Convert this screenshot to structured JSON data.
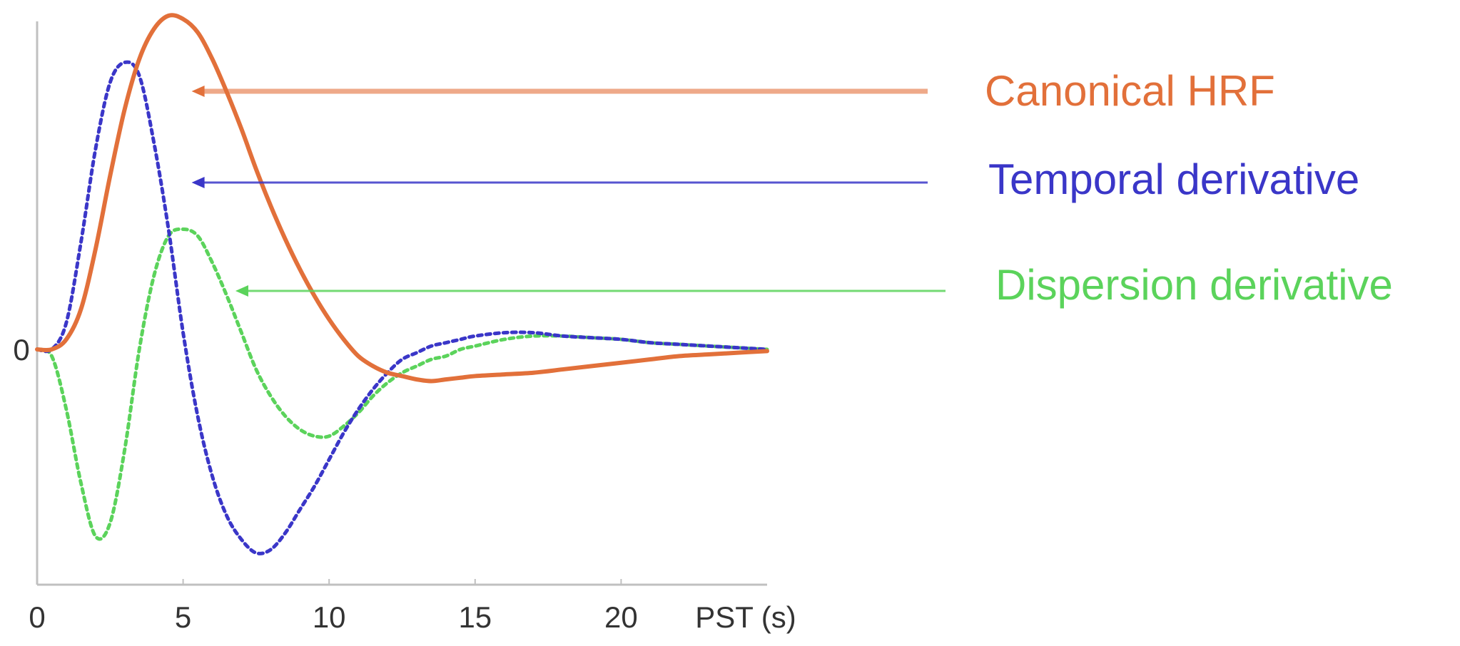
{
  "chart_data": {
    "type": "line",
    "xlabel": "PST (s)",
    "ylabel": "",
    "xlim": [
      0,
      25
    ],
    "ylim": [
      -0.62,
      1.0
    ],
    "x_ticks": [
      0,
      5,
      10,
      15,
      20
    ],
    "x_tick_labels": [
      "0",
      "5",
      "10",
      "15",
      "20"
    ],
    "y_ticks": [
      0
    ],
    "y_tick_labels": [
      "0"
    ],
    "grid": false,
    "legend_placement": "right, annotated with arrows pointing to each curve",
    "series": [
      {
        "name": "Canonical HRF",
        "color": "#e2703a",
        "style": "solid",
        "arrow_target": [
          5,
          0.78
        ],
        "x": [
          0,
          0.5,
          1,
          1.5,
          2,
          2.5,
          3,
          3.5,
          4,
          4.5,
          5,
          5.5,
          6,
          6.5,
          7,
          7.5,
          8,
          8.5,
          9,
          9.5,
          10,
          10.5,
          11,
          11.5,
          12,
          12.5,
          13,
          13.5,
          14,
          14.5,
          15,
          16,
          17,
          18,
          19,
          20,
          21,
          22,
          23,
          24,
          25
        ],
        "y": [
          0,
          0.0,
          0.03,
          0.12,
          0.3,
          0.52,
          0.72,
          0.87,
          0.96,
          1.0,
          0.99,
          0.95,
          0.87,
          0.77,
          0.66,
          0.54,
          0.43,
          0.33,
          0.24,
          0.16,
          0.09,
          0.03,
          -0.02,
          -0.05,
          -0.07,
          -0.08,
          -0.09,
          -0.095,
          -0.09,
          -0.085,
          -0.08,
          -0.075,
          -0.07,
          -0.06,
          -0.05,
          -0.04,
          -0.03,
          -0.02,
          -0.015,
          -0.01,
          -0.005
        ]
      },
      {
        "name": "Temporal derivative",
        "color": "#3a36c8",
        "style": "dotted",
        "arrow_target": [
          5,
          0.5
        ],
        "x": [
          0,
          0.5,
          1,
          1.5,
          2,
          2.5,
          3,
          3.5,
          4,
          4.5,
          5,
          5.5,
          6,
          6.5,
          7,
          7.5,
          8,
          8.5,
          9,
          9.5,
          10,
          10.5,
          11,
          11.5,
          12,
          12.5,
          13,
          13.5,
          14,
          14.5,
          15,
          16,
          17,
          18,
          19,
          20,
          21,
          22,
          23,
          24,
          25
        ],
        "y": [
          0,
          0.0,
          0.08,
          0.32,
          0.6,
          0.8,
          0.86,
          0.82,
          0.62,
          0.36,
          0.05,
          -0.2,
          -0.38,
          -0.5,
          -0.57,
          -0.61,
          -0.6,
          -0.55,
          -0.48,
          -0.41,
          -0.33,
          -0.25,
          -0.18,
          -0.12,
          -0.07,
          -0.03,
          -0.01,
          0.01,
          0.02,
          0.03,
          0.04,
          0.05,
          0.05,
          0.04,
          0.035,
          0.03,
          0.02,
          0.015,
          0.01,
          0.005,
          0.0
        ]
      },
      {
        "name": "Dispersion derivative",
        "color": "#5bd35b",
        "style": "dotted",
        "arrow_target": [
          6.5,
          0.18
        ],
        "x": [
          0,
          0.5,
          1,
          1.5,
          2,
          2.5,
          3,
          3.5,
          4,
          4.5,
          5,
          5.5,
          6,
          6.5,
          7,
          7.5,
          8,
          8.5,
          9,
          9.5,
          10,
          10.5,
          11,
          11.5,
          12,
          12.5,
          13,
          13.5,
          14,
          14.5,
          15,
          16,
          17,
          18,
          19,
          20,
          21,
          22,
          23,
          24,
          25
        ],
        "y": [
          0,
          -0.02,
          -0.18,
          -0.4,
          -0.56,
          -0.52,
          -0.3,
          0.0,
          0.22,
          0.34,
          0.36,
          0.34,
          0.26,
          0.16,
          0.05,
          -0.06,
          -0.14,
          -0.2,
          -0.24,
          -0.26,
          -0.26,
          -0.23,
          -0.19,
          -0.14,
          -0.1,
          -0.07,
          -0.05,
          -0.03,
          -0.02,
          0.0,
          0.01,
          0.03,
          0.04,
          0.04,
          0.035,
          0.03,
          0.02,
          0.015,
          0.01,
          0.005,
          0.0
        ]
      }
    ]
  }
}
